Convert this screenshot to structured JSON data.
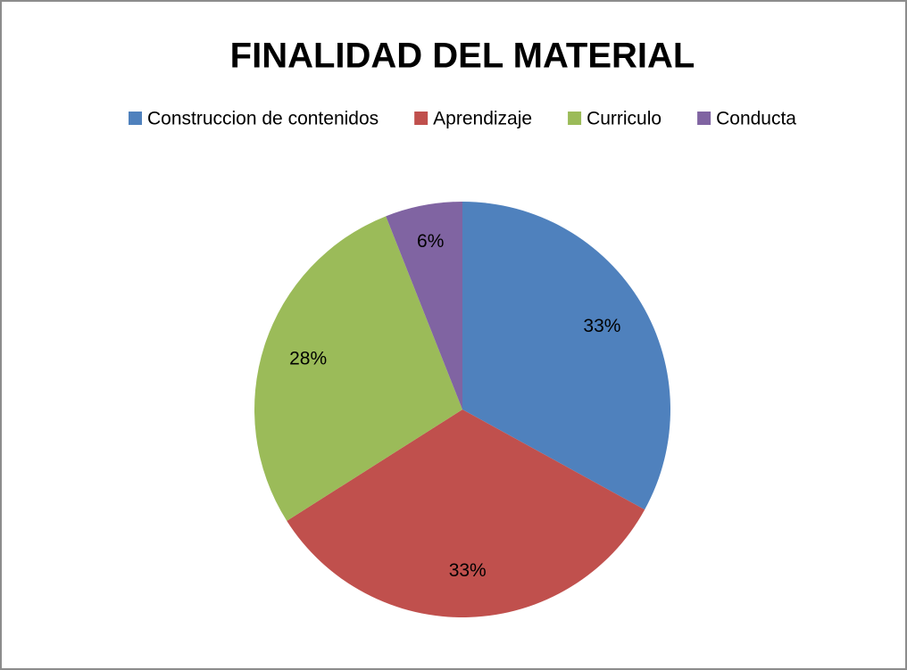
{
  "chart_data": {
    "type": "pie",
    "title": "FINALIDAD DEL MATERIAL",
    "categories": [
      "Construccion de contenidos",
      "Aprendizaje",
      "Curriculo",
      "Conducta"
    ],
    "values": [
      33,
      33,
      28,
      6
    ],
    "value_labels": [
      "33%",
      "33%",
      "28%",
      "6%"
    ],
    "colors": [
      "#4f81bd",
      "#c0504d",
      "#9bbb59",
      "#8064a2"
    ],
    "legend": "top"
  }
}
